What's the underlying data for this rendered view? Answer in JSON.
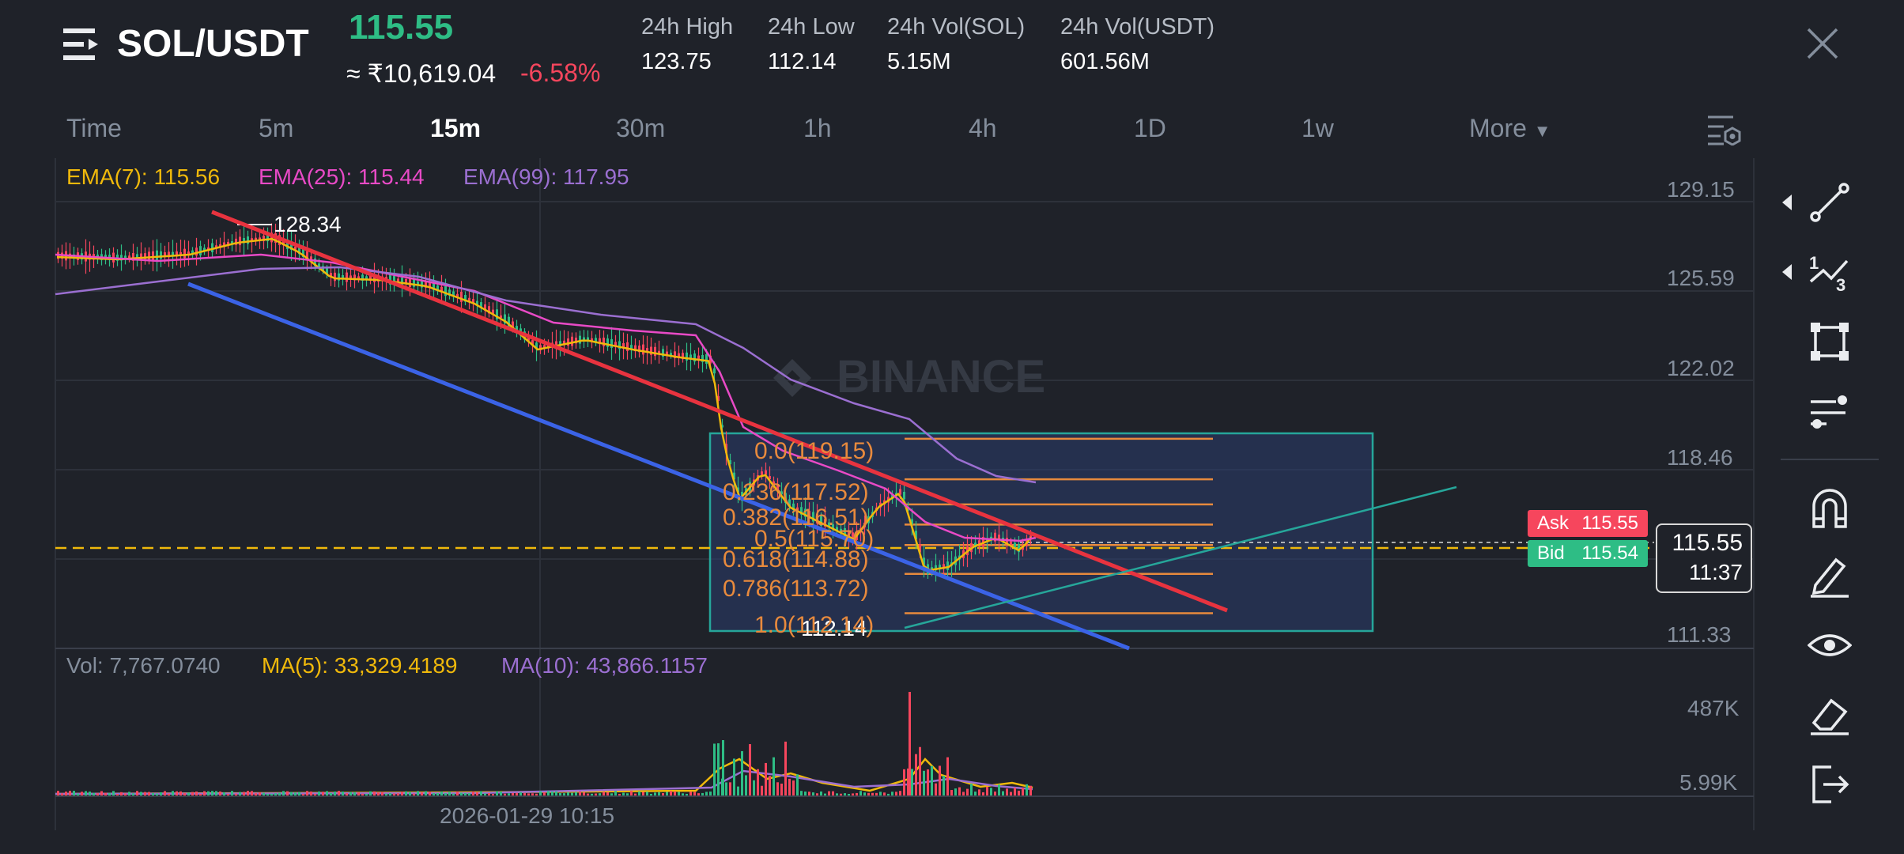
{
  "header": {
    "pair": "SOL/USDT",
    "price": "115.55",
    "fiat_price": "≈ ₹10,619.04",
    "change": "-6.58%",
    "stats": [
      {
        "label": "24h High",
        "value": "123.75"
      },
      {
        "label": "24h Low",
        "value": "112.14"
      },
      {
        "label": "24h Vol(SOL)",
        "value": "5.15M"
      },
      {
        "label": "24h Vol(USDT)",
        "value": "601.56M"
      }
    ]
  },
  "intervals": {
    "items": [
      "Time",
      "5m",
      "15m",
      "30m",
      "1h",
      "4h",
      "1D",
      "1w",
      "More"
    ],
    "active": "15m"
  },
  "indicators": {
    "ema7": "EMA(7): 115.56",
    "ema25": "EMA(25): 115.44",
    "ema99": "EMA(99): 117.95",
    "vol": "Vol: 7,767.0740",
    "ma5": "MA(5): 33,329.4189",
    "ma10": "MA(10): 43,866.1157"
  },
  "colors": {
    "up": "#2ebd85",
    "down": "#f6465d",
    "ema7": "#f0b90b",
    "ema25": "#e84ac6",
    "ema99": "#9b6fd1",
    "fib": "#e88a3d",
    "trend_red": "#e8333f",
    "trend_blue": "#3b63e6"
  },
  "price_axis": [
    "129.15",
    "125.59",
    "122.02",
    "118.46",
    "111.33"
  ],
  "volume_axis": [
    "487K",
    "5.99K"
  ],
  "time_axis": [
    "2026-01-29 10:15"
  ],
  "high_marker": "128.34",
  "low_marker": "112.14",
  "fib_levels": [
    {
      "label": "0.0(119.15)",
      "price": 119.15
    },
    {
      "label": "0.236(117.52)",
      "price": 117.52
    },
    {
      "label": "0.382(116.51)",
      "price": 116.51
    },
    {
      "label": "0.5(115.70)",
      "price": 115.7
    },
    {
      "label": "0.618(114.88)",
      "price": 114.88
    },
    {
      "label": "0.786(113.72)",
      "price": 113.72
    },
    {
      "label": "1.0(112.14)",
      "price": 112.14
    }
  ],
  "orderbook": {
    "ask_label": "Ask",
    "ask": "115.55",
    "bid_label": "Bid",
    "bid": "115.54",
    "current": "115.55",
    "countdown": "11:37"
  },
  "watermark": "BINANCE",
  "toolbar": [
    "trend-line",
    "fib-tool",
    "shape-tool",
    "indicator-tool",
    "magnet-tool",
    "brush-tool",
    "eye-tool",
    "eraser-tool",
    "exit-tool"
  ]
}
